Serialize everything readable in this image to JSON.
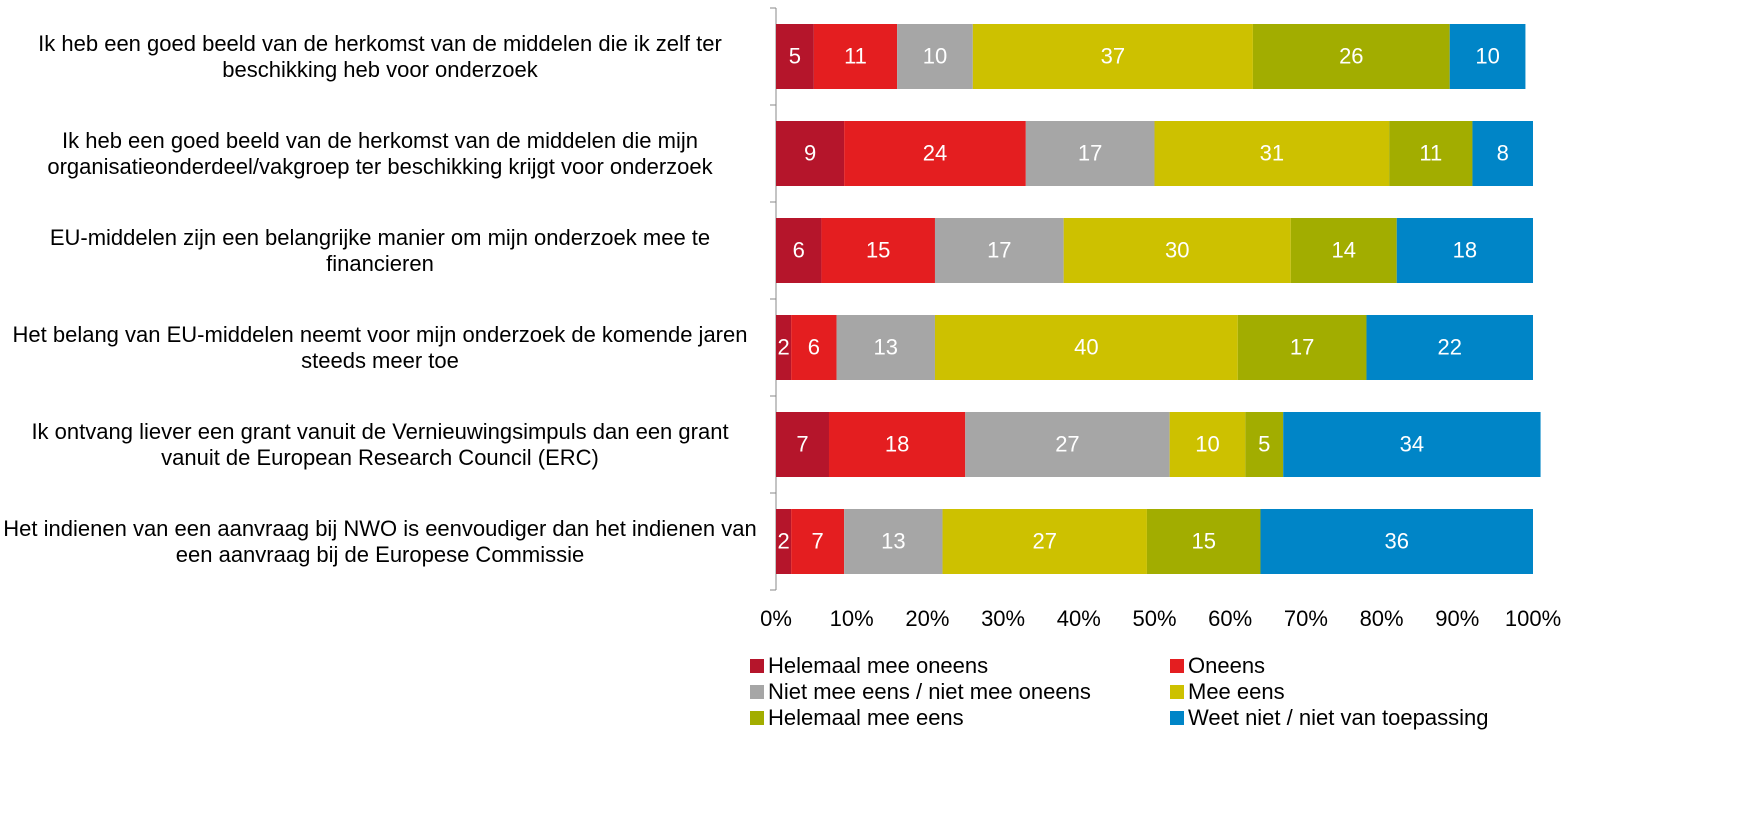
{
  "chart_data": {
    "type": "bar",
    "orientation": "horizontal",
    "stacked": true,
    "categories": [
      "Ik heb een goed beeld van de herkomst van de middelen die ik zelf ter beschikking heb voor onderzoek",
      "Ik heb een goed beeld van de herkomst van de middelen die mijn organisatieonderdeel/vakgroep ter beschikking krijgt voor onderzoek",
      "EU-middelen zijn een belangrijke manier om mijn onderzoek mee te financieren",
      "Het belang van EU-middelen neemt voor mijn onderzoek de komende jaren steeds meer toe",
      "Ik ontvang liever een grant vanuit de Vernieuwingsimpuls dan een grant vanuit de European Research Council (ERC)",
      "Het indienen van een aanvraag bij NWO is eenvoudiger dan het indienen van een aanvraag bij de Europese Commissie"
    ],
    "series": [
      {
        "name": "Helemaal mee oneens",
        "color": "#b5152b",
        "values": [
          5,
          9,
          6,
          2,
          7,
          2
        ]
      },
      {
        "name": "Oneens",
        "color": "#e41e20",
        "values": [
          11,
          24,
          15,
          6,
          18,
          7
        ]
      },
      {
        "name": "Niet mee eens / niet mee oneens",
        "color": "#a6a6a6",
        "values": [
          10,
          17,
          17,
          13,
          27,
          13
        ]
      },
      {
        "name": "Mee eens",
        "color": "#cdc100",
        "values": [
          37,
          31,
          30,
          40,
          10,
          27
        ]
      },
      {
        "name": "Helemaal mee eens",
        "color": "#a2ad00",
        "values": [
          26,
          11,
          14,
          17,
          5,
          15
        ]
      },
      {
        "name": "Weet niet / niet van toepassing",
        "color": "#0085c7",
        "values": [
          10,
          8,
          18,
          22,
          34,
          36
        ]
      }
    ],
    "xlim": [
      0,
      100
    ],
    "xticks": [
      {
        "value": 0,
        "label": "0%"
      },
      {
        "value": 10,
        "label": "10%"
      },
      {
        "value": 20,
        "label": "20%"
      },
      {
        "value": 30,
        "label": "30%"
      },
      {
        "value": 40,
        "label": "40%"
      },
      {
        "value": 50,
        "label": "50%"
      },
      {
        "value": 60,
        "label": "60%"
      },
      {
        "value": 70,
        "label": "70%"
      },
      {
        "value": 80,
        "label": "80%"
      },
      {
        "value": 90,
        "label": "90%"
      },
      {
        "value": 100,
        "label": "100%"
      }
    ],
    "legend": "bottom"
  }
}
